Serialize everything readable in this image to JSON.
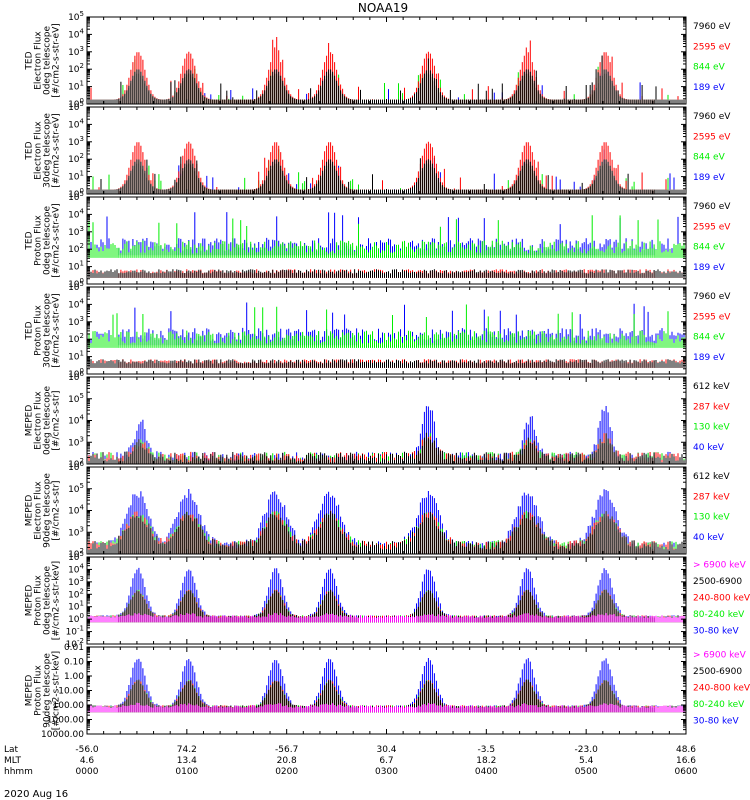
{
  "title": "NOAA19",
  "date_label": "2020 Aug 16",
  "colors": {
    "black": "#000000",
    "red": "#ff0000",
    "green": "#00ee00",
    "blue": "#0000ff",
    "magenta": "#ff00ff"
  },
  "time_axis": {
    "row_labels": [
      "Lat",
      "MLT",
      "hhmm"
    ],
    "ticks": [
      {
        "lat": "-56.0",
        "mlt": "4.6",
        "hhmm": "0000"
      },
      {
        "lat": "74.2",
        "mlt": "13.4",
        "hhmm": "0100"
      },
      {
        "lat": "-56.7",
        "mlt": "20.8",
        "hhmm": "0200"
      },
      {
        "lat": "30.4",
        "mlt": "6.7",
        "hhmm": "0300"
      },
      {
        "lat": "-3.5",
        "mlt": "18.2",
        "hhmm": "0400"
      },
      {
        "lat": "-23.0",
        "mlt": "5.4",
        "hhmm": "0500"
      },
      {
        "lat": "48.6",
        "mlt": "16.6",
        "hhmm": "0600"
      }
    ]
  },
  "chart_data": [
    {
      "type": "line",
      "id": "ted-e-0",
      "ylabel": [
        "TED",
        "Electron Flux",
        "0deg telescope",
        "[#/cm2-s-str-eV]"
      ],
      "yscale": "log",
      "ylim": [
        1,
        100000
      ],
      "ytick_labels": [
        "10^0",
        "10^1",
        "10^2",
        "10^3",
        "10^4",
        "10^5"
      ],
      "legend": [
        {
          "label": "7960 eV",
          "color": "black"
        },
        {
          "label": "2595 eV",
          "color": "red"
        },
        {
          "label": "844 eV",
          "color": "green"
        },
        {
          "label": "189 eV",
          "color": "blue"
        }
      ]
    },
    {
      "type": "line",
      "id": "ted-e-30",
      "ylabel": [
        "TED",
        "Electron Flux",
        "30deg telescope",
        "[#/cm2-s-str-eV]"
      ],
      "yscale": "log",
      "ylim": [
        1,
        100000
      ],
      "ytick_labels": [
        "10^0",
        "10^1",
        "10^2",
        "10^3",
        "10^4",
        "10^5"
      ],
      "legend": [
        {
          "label": "7960 eV",
          "color": "black"
        },
        {
          "label": "2595 eV",
          "color": "red"
        },
        {
          "label": "844 eV",
          "color": "green"
        },
        {
          "label": "189 eV",
          "color": "blue"
        }
      ]
    },
    {
      "type": "line",
      "id": "ted-p-0",
      "ylabel": [
        "TED",
        "Proton Flux",
        "0deg telescope",
        "[#/cm2-s-str-eV]"
      ],
      "yscale": "log",
      "ylim": [
        1,
        100000
      ],
      "ytick_labels": [
        "10^0",
        "10^1",
        "10^2",
        "10^3",
        "10^4",
        "10^5"
      ],
      "legend": [
        {
          "label": "7960 eV",
          "color": "black"
        },
        {
          "label": "2595 eV",
          "color": "red"
        },
        {
          "label": "844 eV",
          "color": "green"
        },
        {
          "label": "189 eV",
          "color": "blue"
        }
      ]
    },
    {
      "type": "line",
      "id": "ted-p-30",
      "ylabel": [
        "TED",
        "Proton Flux",
        "30deg telescope",
        "[#/cm2-s-str-eV]"
      ],
      "yscale": "log",
      "ylim": [
        1,
        100000
      ],
      "ytick_labels": [
        "10^0",
        "10^1",
        "10^2",
        "10^3",
        "10^4",
        "10^5"
      ],
      "legend": [
        {
          "label": "7960 eV",
          "color": "black"
        },
        {
          "label": "2595 eV",
          "color": "red"
        },
        {
          "label": "844 eV",
          "color": "green"
        },
        {
          "label": "189 eV",
          "color": "blue"
        }
      ]
    },
    {
      "type": "line",
      "id": "meped-e-0",
      "ylabel": [
        "MEPED",
        "Electron Flux",
        "0deg telescope",
        "[#/cm2-s-str]"
      ],
      "yscale": "log",
      "ylim": [
        100,
        1000000
      ],
      "ytick_labels": [
        "10^2",
        "10^3",
        "10^4",
        "10^5",
        "10^6"
      ],
      "legend": [
        {
          "label": "612 keV",
          "color": "black"
        },
        {
          "label": "287 keV",
          "color": "red"
        },
        {
          "label": "130 keV",
          "color": "green"
        },
        {
          "label": "40 keV",
          "color": "blue"
        }
      ]
    },
    {
      "type": "line",
      "id": "meped-e-90",
      "ylabel": [
        "MEPED",
        "Electron Flux",
        "90deg telescope",
        "[#/cm2-s-str]"
      ],
      "yscale": "log",
      "ylim": [
        100,
        1000000
      ],
      "ytick_labels": [
        "10^2",
        "10^3",
        "10^4",
        "10^5",
        "10^6"
      ],
      "legend": [
        {
          "label": "612 keV",
          "color": "black"
        },
        {
          "label": "287 keV",
          "color": "red"
        },
        {
          "label": "130 keV",
          "color": "green"
        },
        {
          "label": "40 keV",
          "color": "blue"
        }
      ]
    },
    {
      "type": "line",
      "id": "meped-p-0",
      "ylabel": [
        "MEPED",
        "Proton Flux",
        "0deg telescope",
        "[#/cm2-s-str-keV]"
      ],
      "yscale": "log",
      "ylim": [
        0.01,
        100000
      ],
      "ytick_labels": [
        "10^-2",
        "10^-1",
        "10^0",
        "10^1",
        "10^2",
        "10^3",
        "10^4",
        "10^5"
      ],
      "legend": [
        {
          "label": "> 6900 keV",
          "color": "magenta"
        },
        {
          "label": "2500-6900",
          "color": "black"
        },
        {
          "label": "240-800 keV",
          "color": "red"
        },
        {
          "label": "80-240 keV",
          "color": "green"
        },
        {
          "label": "30-80 keV",
          "color": "blue"
        }
      ]
    },
    {
      "type": "line",
      "id": "meped-p-90",
      "ylabel": [
        "MEPED",
        "Proton Flux",
        "90deg telescope",
        "[#/cm2-s-str-keV]"
      ],
      "yscale": "log",
      "ylim": [
        0.01,
        10000
      ],
      "ytick_labels": [
        "10000.00",
        "1000.00",
        "100.00",
        "10.00",
        "1.00",
        "0.10",
        "0.01"
      ],
      "legend": [
        {
          "label": "> 6900 keV",
          "color": "magenta"
        },
        {
          "label": "2500-6900",
          "color": "black"
        },
        {
          "label": "240-800 keV",
          "color": "red"
        },
        {
          "label": "80-240 keV",
          "color": "green"
        },
        {
          "label": "30-80 keV",
          "color": "blue"
        }
      ]
    }
  ]
}
